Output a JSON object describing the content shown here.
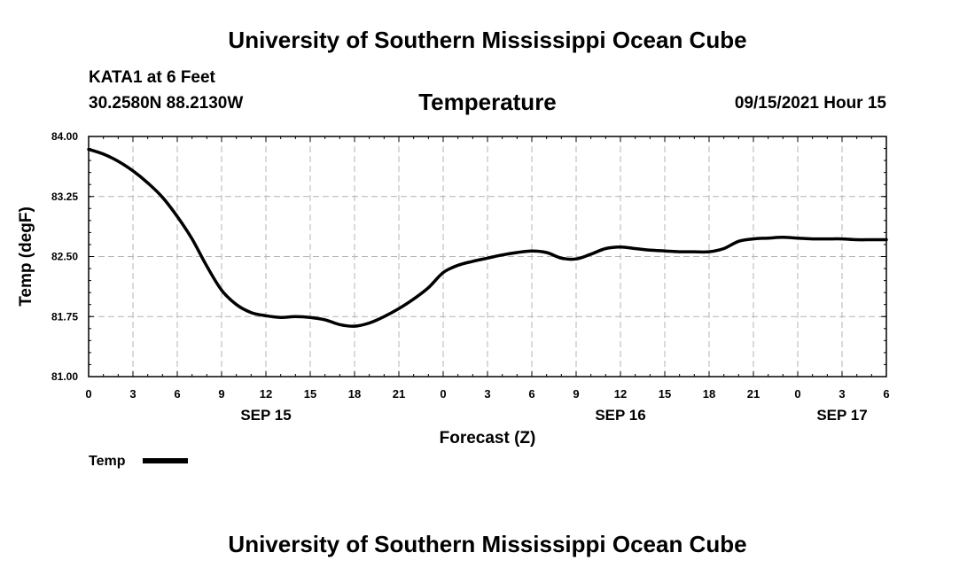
{
  "header": {
    "title": "University of Southern Mississippi Ocean Cube",
    "station": "KATA1 at 6 Feet",
    "coordinates": "30.2580N  88.2130W",
    "parameter": "Temperature",
    "datetime": "09/15/2021 Hour 15"
  },
  "footer": {
    "title": "University of Southern Mississippi Ocean Cube"
  },
  "colors": {
    "line": "#000000",
    "grid": "#b4b4b4"
  },
  "chart_data": {
    "type": "line",
    "title": "Temperature",
    "xlabel": "Forecast (Z)",
    "ylabel": "Temp (degF)",
    "xlim": [
      0,
      54
    ],
    "ylim": [
      81.0,
      84.0
    ],
    "x_tick_values": [
      0,
      3,
      6,
      9,
      12,
      15,
      18,
      21,
      24,
      27,
      30,
      33,
      36,
      39,
      42,
      45,
      48,
      51,
      54
    ],
    "x_tick_labels": [
      "0",
      "3",
      "6",
      "9",
      "12",
      "15",
      "18",
      "21",
      "0",
      "3",
      "6",
      "9",
      "12",
      "15",
      "18",
      "21",
      "0",
      "3",
      "6"
    ],
    "y_tick_values": [
      81.0,
      81.75,
      82.5,
      83.25,
      84.0
    ],
    "y_tick_labels": [
      "81.00",
      "81.75",
      "82.50",
      "83.25",
      "84.00"
    ],
    "day_labels": [
      {
        "x": 12,
        "label": "SEP 15"
      },
      {
        "x": 36,
        "label": "SEP 16"
      },
      {
        "x": 51,
        "label": "SEP 17"
      }
    ],
    "grid": true,
    "legend": {
      "position": "bottom-left",
      "entries": [
        "Temp"
      ]
    },
    "series": [
      {
        "name": "Temp",
        "x": [
          0,
          1,
          2,
          3,
          4,
          5,
          6,
          7,
          8,
          9,
          10,
          11,
          12,
          13,
          14,
          15,
          16,
          17,
          18,
          19,
          20,
          21,
          22,
          23,
          24,
          25,
          26,
          27,
          28,
          29,
          30,
          31,
          32,
          33,
          34,
          35,
          36,
          37,
          38,
          39,
          40,
          41,
          42,
          43,
          44,
          45,
          46,
          47,
          48,
          49,
          50,
          51,
          52,
          53,
          54
        ],
        "values": [
          83.84,
          83.78,
          83.69,
          83.57,
          83.42,
          83.24,
          83.0,
          82.72,
          82.38,
          82.08,
          81.9,
          81.8,
          81.76,
          81.74,
          81.75,
          81.74,
          81.71,
          81.65,
          81.63,
          81.67,
          81.75,
          81.85,
          81.97,
          82.11,
          82.3,
          82.39,
          82.44,
          82.48,
          82.52,
          82.55,
          82.57,
          82.55,
          82.48,
          82.47,
          82.53,
          82.6,
          82.62,
          82.6,
          82.58,
          82.57,
          82.56,
          82.56,
          82.56,
          82.6,
          82.69,
          82.72,
          82.73,
          82.74,
          82.73,
          82.72,
          82.72,
          82.72,
          82.71,
          82.71,
          82.71
        ]
      }
    ]
  }
}
